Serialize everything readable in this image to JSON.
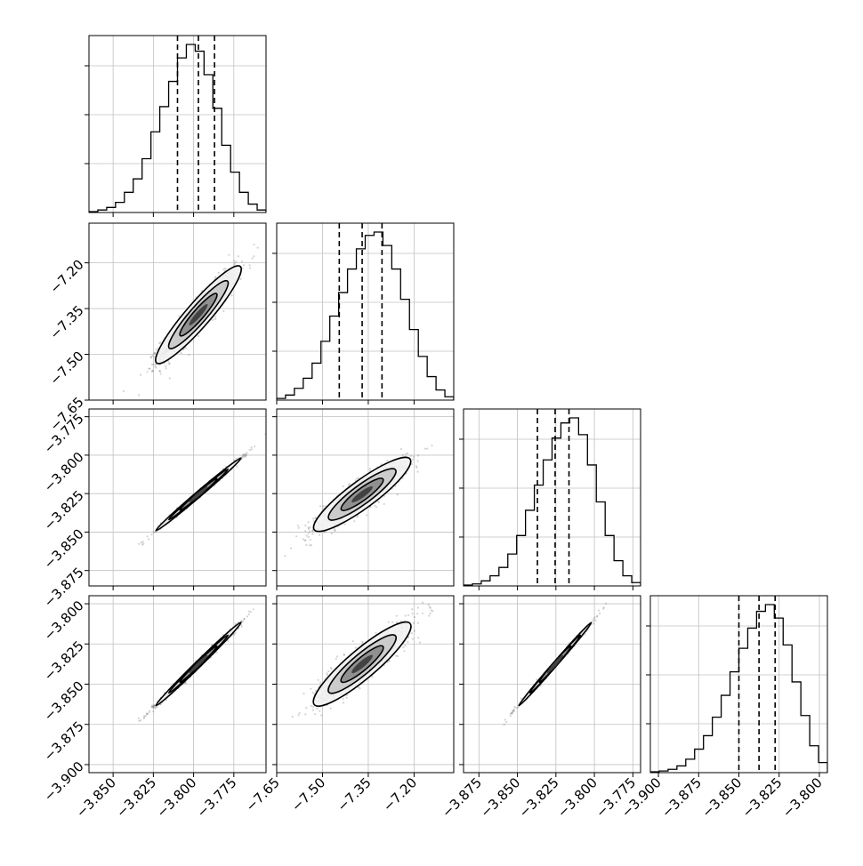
{
  "chart_data": {
    "type": "corner",
    "grid": true,
    "parameters": [
      {
        "range": [
          -3.865,
          -3.755
        ],
        "ticks": [
          "−3.850",
          "−3.825",
          "−3.800",
          "−3.775"
        ],
        "tick_values": [
          -3.85,
          -3.825,
          -3.8,
          -3.775
        ]
      },
      {
        "range": [
          -7.65,
          -7.07
        ],
        "ticks": [
          "−7.65",
          "−7.50",
          "−7.35",
          "−7.20"
        ],
        "tick_values": [
          -7.65,
          -7.5,
          -7.35,
          -7.2
        ]
      },
      {
        "range": [
          -3.885,
          -3.77
        ],
        "ticks": [
          "−3.875",
          "−3.850",
          "−3.825",
          "−3.800",
          "−3.775"
        ],
        "tick_values": [
          -3.875,
          -3.85,
          -3.825,
          -3.8,
          -3.775
        ]
      },
      {
        "range": [
          -3.905,
          -3.795
        ],
        "ticks": [
          "−3.900",
          "−3.875",
          "−3.850",
          "−3.825",
          "−3.800"
        ],
        "tick_values": [
          -3.9,
          -3.875,
          -3.85,
          -3.825,
          -3.8
        ]
      }
    ],
    "quantiles": [
      [
        -3.81,
        -3.797,
        -3.787
      ],
      [
        -7.445,
        -7.37,
        -7.305
      ],
      [
        -3.837,
        -3.8255,
        -3.8165
      ],
      [
        -3.85,
        -3.8375,
        -3.8275
      ]
    ],
    "histograms": [
      [
        0.005,
        0.015,
        0.03,
        0.06,
        0.12,
        0.2,
        0.32,
        0.48,
        0.63,
        0.78,
        0.92,
        1.0,
        0.96,
        0.82,
        0.62,
        0.4,
        0.24,
        0.12,
        0.05,
        0.015
      ],
      [
        0.01,
        0.03,
        0.07,
        0.13,
        0.22,
        0.35,
        0.5,
        0.64,
        0.78,
        0.9,
        0.98,
        1.0,
        0.92,
        0.78,
        0.6,
        0.42,
        0.26,
        0.14,
        0.06,
        0.02
      ],
      [
        0.005,
        0.012,
        0.03,
        0.06,
        0.11,
        0.19,
        0.3,
        0.45,
        0.6,
        0.75,
        0.88,
        0.97,
        1.0,
        0.9,
        0.72,
        0.5,
        0.3,
        0.15,
        0.06,
        0.02
      ],
      [
        0.005,
        0.01,
        0.02,
        0.04,
        0.08,
        0.14,
        0.22,
        0.33,
        0.46,
        0.6,
        0.74,
        0.86,
        0.96,
        1.0,
        0.92,
        0.76,
        0.54,
        0.34,
        0.16,
        0.06
      ]
    ],
    "joint_correlation": [
      [
        null,
        null,
        null,
        null
      ],
      [
        0.93,
        null,
        null,
        null
      ],
      [
        0.995,
        0.9,
        null,
        null
      ],
      [
        0.995,
        0.9,
        0.997,
        null
      ]
    ]
  }
}
